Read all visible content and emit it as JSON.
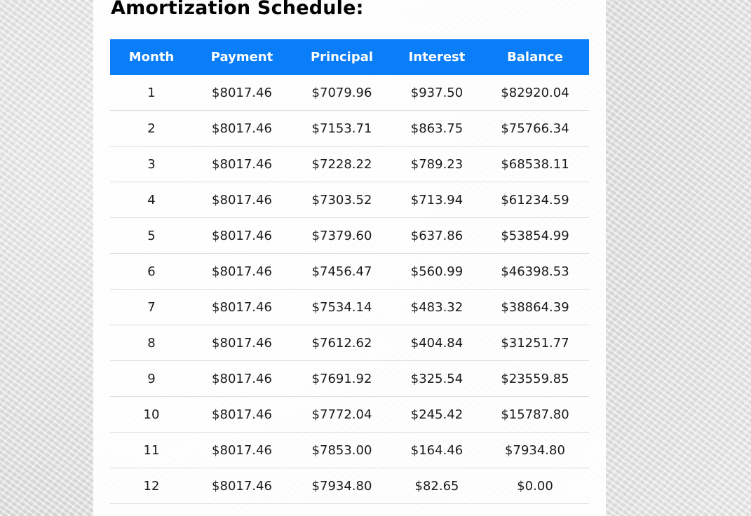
{
  "page": {
    "title": "Amortization Schedule:"
  },
  "colors": {
    "header_background": "#0a7ef8",
    "header_text": "#ffffff",
    "row_divider": "#dcdcdc"
  },
  "table": {
    "headers": [
      "Month",
      "Payment",
      "Principal",
      "Interest",
      "Balance"
    ],
    "rows": [
      [
        "1",
        "$8017.46",
        "$7079.96",
        "$937.50",
        "$82920.04"
      ],
      [
        "2",
        "$8017.46",
        "$7153.71",
        "$863.75",
        "$75766.34"
      ],
      [
        "3",
        "$8017.46",
        "$7228.22",
        "$789.23",
        "$68538.11"
      ],
      [
        "4",
        "$8017.46",
        "$7303.52",
        "$713.94",
        "$61234.59"
      ],
      [
        "5",
        "$8017.46",
        "$7379.60",
        "$637.86",
        "$53854.99"
      ],
      [
        "6",
        "$8017.46",
        "$7456.47",
        "$560.99",
        "$46398.53"
      ],
      [
        "7",
        "$8017.46",
        "$7534.14",
        "$483.32",
        "$38864.39"
      ],
      [
        "8",
        "$8017.46",
        "$7612.62",
        "$404.84",
        "$31251.77"
      ],
      [
        "9",
        "$8017.46",
        "$7691.92",
        "$325.54",
        "$23559.85"
      ],
      [
        "10",
        "$8017.46",
        "$7772.04",
        "$245.42",
        "$15787.80"
      ],
      [
        "11",
        "$8017.46",
        "$7853.00",
        "$164.46",
        "$7934.80"
      ],
      [
        "12",
        "$8017.46",
        "$7934.80",
        "$82.65",
        "$0.00"
      ]
    ]
  }
}
